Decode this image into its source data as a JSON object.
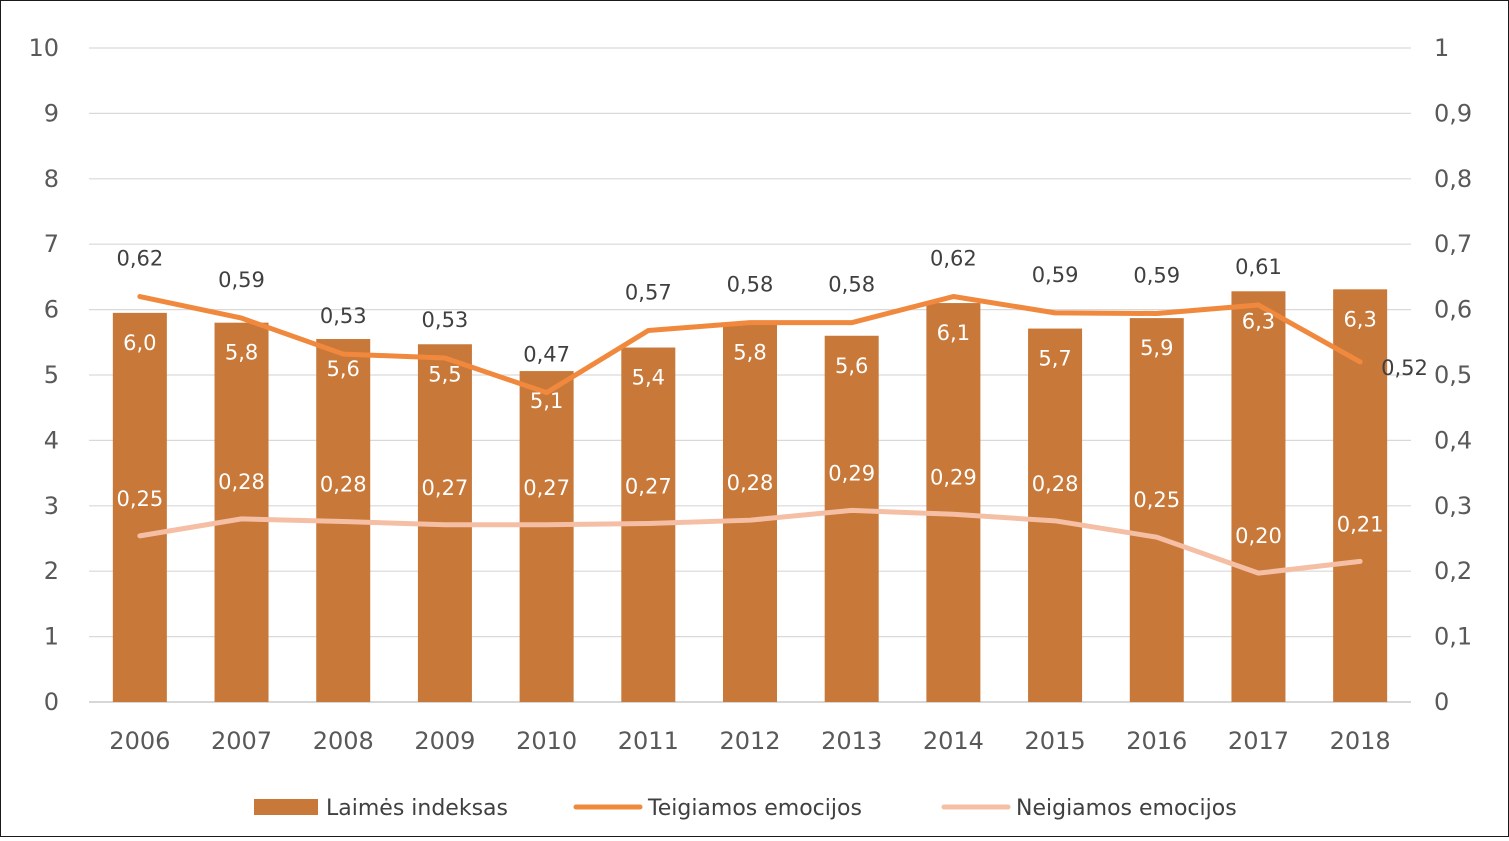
{
  "chart_data": {
    "type": "bar",
    "categories": [
      "2006",
      "2007",
      "2008",
      "2009",
      "2010",
      "2011",
      "2012",
      "2013",
      "2014",
      "2015",
      "2016",
      "2017",
      "2018"
    ],
    "y_left": {
      "ylim": [
        0,
        10
      ],
      "ticks": [
        "0",
        "1",
        "2",
        "3",
        "4",
        "5",
        "6",
        "7",
        "8",
        "9",
        "10"
      ]
    },
    "y_right": {
      "ylim": [
        0,
        1
      ],
      "ticks": [
        "0",
        "0,1",
        "0,2",
        "0,3",
        "0,4",
        "0,5",
        "0,6",
        "0,7",
        "0,8",
        "0,9",
        "1"
      ]
    },
    "grid": true,
    "legend_position": "bottom",
    "series": [
      {
        "name": "Laimės indeksas",
        "type": "bar",
        "axis": "left",
        "color": "#C87838",
        "values": [
          5.95,
          5.8,
          5.55,
          5.47,
          5.06,
          5.42,
          5.8,
          5.6,
          6.1,
          5.71,
          5.87,
          6.28,
          6.31
        ],
        "labels": [
          "6,0",
          "5,8",
          "5,6",
          "5,5",
          "5,1",
          "5,4",
          "5,8",
          "5,6",
          "6,1",
          "5,7",
          "5,9",
          "6,3",
          "6,3"
        ]
      },
      {
        "name": "Teigiamos emocijos",
        "type": "line",
        "axis": "right",
        "color": "#F0893E",
        "values": [
          0.62,
          0.587,
          0.532,
          0.526,
          0.473,
          0.568,
          0.58,
          0.58,
          0.62,
          0.595,
          0.594,
          0.607,
          0.52
        ],
        "labels": [
          "0,62",
          "0,59",
          "0,53",
          "0,53",
          "0,47",
          "0,57",
          "0,58",
          "0,58",
          "0,62",
          "0,59",
          "0,59",
          "0,61",
          "0,52"
        ]
      },
      {
        "name": "Neigiamos emocijos",
        "type": "line",
        "axis": "right",
        "color": "#F5BFA5",
        "values": [
          0.254,
          0.28,
          0.276,
          0.271,
          0.271,
          0.273,
          0.278,
          0.293,
          0.287,
          0.277,
          0.252,
          0.197,
          0.215
        ],
        "labels": [
          "0,25",
          "0,28",
          "0,28",
          "0,27",
          "0,27",
          "0,27",
          "0,28",
          "0,29",
          "0,29",
          "0,28",
          "0,25",
          "0,20",
          "0,21"
        ]
      }
    ]
  }
}
